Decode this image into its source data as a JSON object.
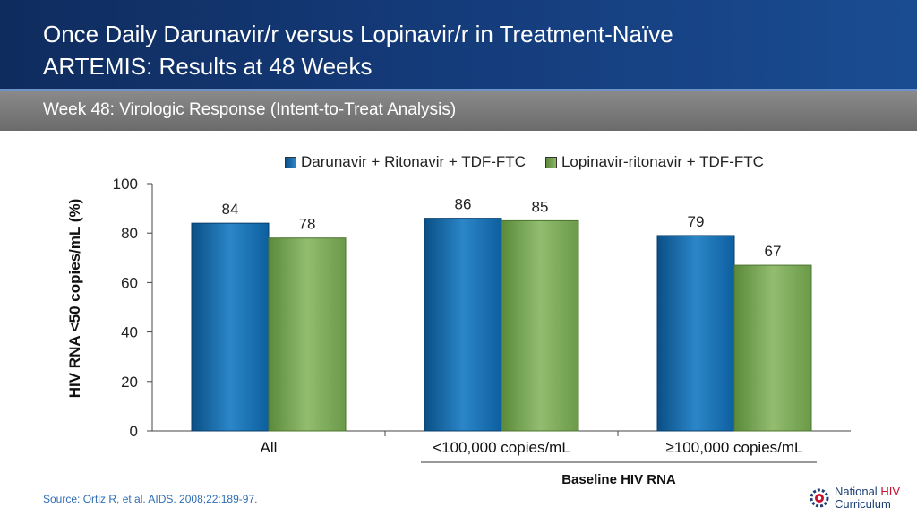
{
  "header": {
    "title_line1": "Once Daily Darunavir/r versus Lopinavir/r in Treatment-Naïve",
    "title_line2": "ARTEMIS: Results at 48 Weeks"
  },
  "subtitle": "Week 48: Virologic Response (Intent-to-Treat Analysis)",
  "chart_data": {
    "type": "bar",
    "categories": [
      "All",
      "<100,000 copies/mL",
      "≥100,000 copies/mL"
    ],
    "series": [
      {
        "name": "Darunavir + Ritonavir + TDF-FTC",
        "values": [
          84,
          86,
          79
        ],
        "color": "#1b6fb0"
      },
      {
        "name": "Lopinavir-ritonavir + TDF-FTC",
        "values": [
          78,
          85,
          67
        ],
        "color": "#79a655"
      }
    ],
    "ylabel": "HIV RNA <50 copies/mL (%)",
    "xlabel": "Baseline HIV RNA",
    "ylim": [
      0,
      100
    ],
    "yticks": [
      "0",
      "20",
      "40",
      "60",
      "80",
      "100"
    ],
    "legend": "top",
    "grid": false
  },
  "footer": {
    "source": "Source: Ortiz R, et al. AIDS. 2008;22:189-97.",
    "logo_national": "National",
    "logo_hiv": "HIV",
    "logo_curriculum": "Curriculum"
  }
}
